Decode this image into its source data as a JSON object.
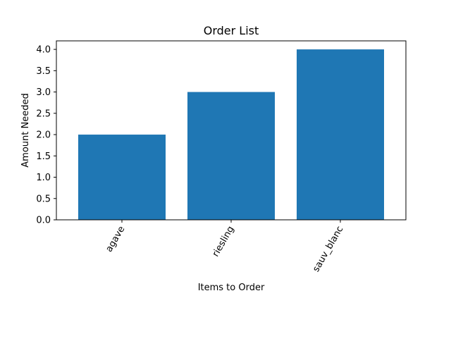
{
  "chart_data": {
    "type": "bar",
    "title": "Order List",
    "xlabel": "Items to Order",
    "ylabel": "Amount Needed",
    "categories": [
      "agave",
      "riesling",
      "sauv_blanc"
    ],
    "values": [
      2,
      3,
      4
    ],
    "ylim": [
      0,
      4.2
    ],
    "yticks": [
      "0.0",
      "0.5",
      "1.0",
      "1.5",
      "2.0",
      "2.5",
      "3.0",
      "3.5",
      "4.0"
    ],
    "x_tick_rotation_deg": 60,
    "bar_color": "#1f77b4",
    "grid": false,
    "legend": "none"
  }
}
